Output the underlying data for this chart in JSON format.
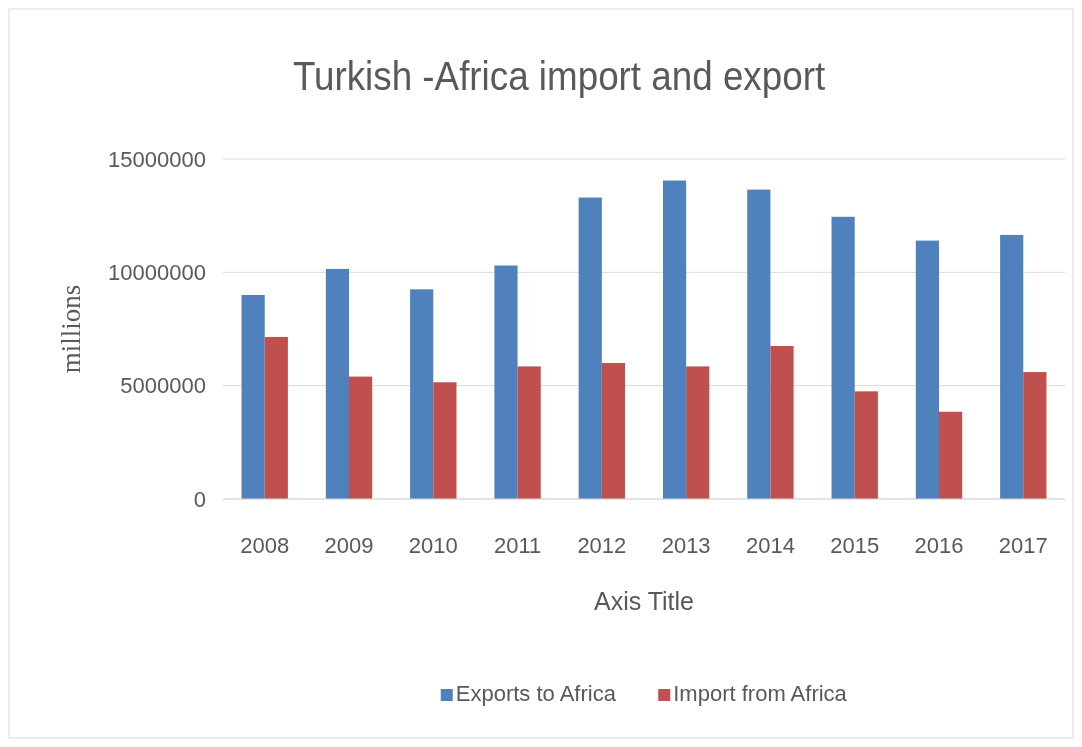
{
  "chart_data": {
    "type": "bar",
    "title": "Turkish -Africa  import and export",
    "xlabel": "Axis Title",
    "ylabel": "millions",
    "categories": [
      "2008",
      "2009",
      "2010",
      "2011",
      "2012",
      "2013",
      "2014",
      "2015",
      "2016",
      "2017"
    ],
    "series": [
      {
        "name": "Exports to Africa",
        "color": "#4f81bd",
        "values": [
          9000000,
          10150000,
          9250000,
          10300000,
          13300000,
          14050000,
          13650000,
          12450000,
          11400000,
          11650000
        ]
      },
      {
        "name": "Import from Africa",
        "color": "#c0504d",
        "values": [
          7150000,
          5400000,
          5150000,
          5850000,
          6000000,
          5850000,
          6750000,
          4750000,
          3850000,
          5600000
        ]
      }
    ],
    "ylim": [
      0,
      15000000
    ],
    "yticks": [
      0,
      5000000,
      10000000,
      15000000
    ],
    "grid": "y",
    "legend": "bottom"
  }
}
